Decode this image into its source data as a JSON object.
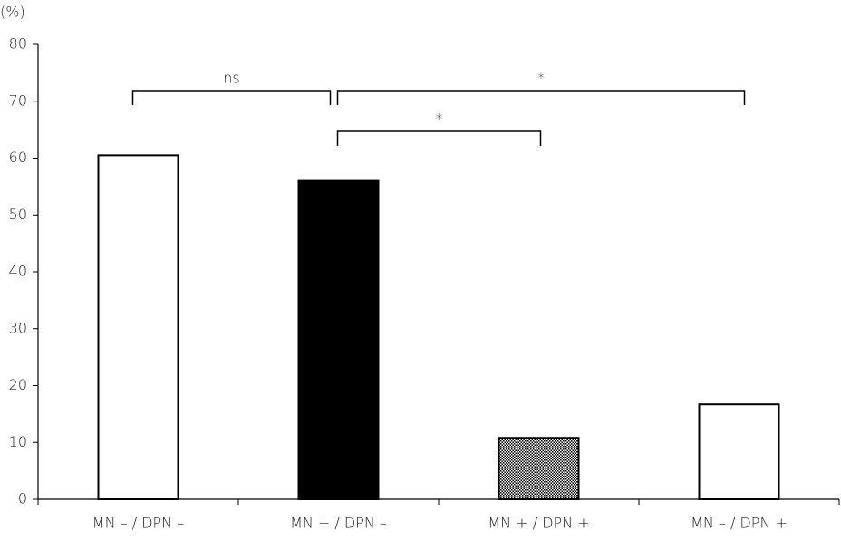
{
  "chart_data": {
    "type": "bar",
    "y_label": "(%)",
    "categories": [
      "MN – /  DPN –",
      "MN + / DPN –",
      "MN + / DPN +",
      "MN – / DPN +"
    ],
    "values": [
      60.5,
      56,
      10.8,
      16.7
    ],
    "fills": [
      "#ffffff",
      "#000000",
      "crosshatch",
      "#ffffff"
    ],
    "ylim": [
      0,
      80
    ],
    "yticks": [
      0,
      10,
      20,
      30,
      40,
      50,
      60,
      70,
      80
    ],
    "grid": false,
    "annotations": [
      {
        "text": "ns",
        "from": 0,
        "to": 1
      },
      {
        "text": "*",
        "from": 1,
        "to": 3
      },
      {
        "text": "*",
        "from": 1,
        "to": 2
      }
    ]
  }
}
